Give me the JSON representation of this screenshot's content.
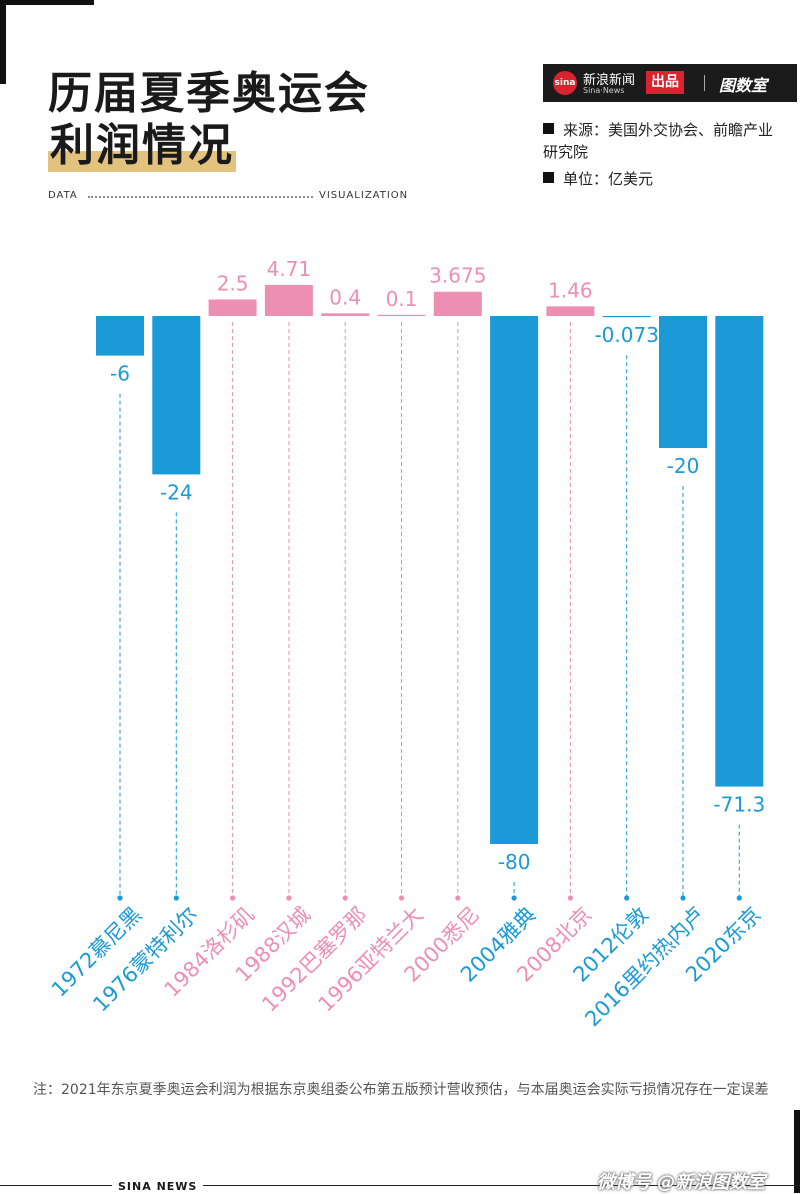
{
  "title": {
    "line1": "历届夏季奥运会",
    "line2": "利润情况"
  },
  "labels": {
    "data": "DATA",
    "visualization": "VISUALIZATION"
  },
  "brand": {
    "logo": "sina",
    "name": "新浪新闻",
    "sub": "Sina·News",
    "tag": "出品",
    "lab": "图数室"
  },
  "source": "来源：美国外交协会、前瞻产业研究院",
  "unit": "单位：亿美元",
  "chart_data": {
    "type": "bar",
    "categories": [
      "1972慕尼黑",
      "1976蒙特利尔",
      "1984洛杉矶",
      "1988汉城",
      "1992巴塞罗那",
      "1996亚特兰大",
      "2000悉尼",
      "2004雅典",
      "2008北京",
      "2012伦敦",
      "2016里约热内卢",
      "2020东京"
    ],
    "values": [
      -6,
      -24,
      2.5,
      4.71,
      0.4,
      0.1,
      3.675,
      -80,
      1.46,
      -0.073,
      -20,
      -71.3
    ],
    "value_labels": [
      "-6",
      "-24",
      "2.5",
      "4.71",
      "0.4",
      "0.1",
      "3.675",
      "-80",
      "1.46",
      "-0.073",
      "-20",
      "-71.3"
    ],
    "colors": {
      "positive": "#ec8fb3",
      "negative": "#1a9ad6"
    },
    "ylabel": "亿美元",
    "grid": false
  },
  "note": "注：2021年东京夏季奥运会利润为根据东京奥组委公布第五版预计营收预估，与本届奥运会实际亏损情况存在一定误差",
  "footer": "SINA NEWS",
  "watermark": "微博号 @新浪图数室"
}
